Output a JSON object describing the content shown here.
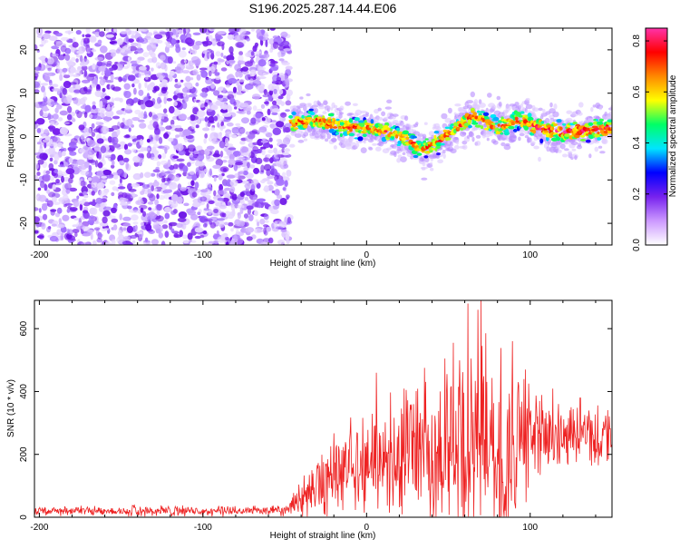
{
  "title": "S196.2025.287.14.44.E06",
  "chart_data": [
    {
      "type": "heatmap",
      "xlabel": "Height of straight line (km)",
      "ylabel": "Frequency (Hz)",
      "xlim": [
        -203,
        150
      ],
      "ylim": [
        -25,
        25
      ],
      "xticks": [
        -200,
        -100,
        0,
        100
      ],
      "yticks": [
        -20,
        -10,
        0,
        10,
        20
      ],
      "signal_onset_km": -47,
      "center_frequency_track": [
        {
          "x": -45,
          "y": 3
        },
        {
          "x": -30,
          "y": 4
        },
        {
          "x": -15,
          "y": 2
        },
        {
          "x": 0,
          "y": 2
        },
        {
          "x": 15,
          "y": 1
        },
        {
          "x": 25,
          "y": -1
        },
        {
          "x": 35,
          "y": -3
        },
        {
          "x": 45,
          "y": -1
        },
        {
          "x": 55,
          "y": 2
        },
        {
          "x": 65,
          "y": 5
        },
        {
          "x": 80,
          "y": 2
        },
        {
          "x": 95,
          "y": 4
        },
        {
          "x": 105,
          "y": 2
        },
        {
          "x": 120,
          "y": 1
        },
        {
          "x": 150,
          "y": 2
        }
      ],
      "colorbar": {
        "label": "Normalized spectral amplitude",
        "range": [
          0.0,
          0.85
        ],
        "ticks": [
          "0.0",
          "0.2",
          "0.4",
          "0.6",
          "0.8"
        ],
        "colors": [
          "#ffffff",
          "#cc99ff",
          "#7722ee",
          "#0000ff",
          "#00e5ff",
          "#00ff66",
          "#ffff00",
          "#ff8800",
          "#ff0000",
          "#ff33aa"
        ]
      }
    },
    {
      "type": "line",
      "xlabel": "Height of straight line (km)",
      "ylabel": "SNR (10 * v/v)",
      "xlim": [
        -203,
        150
      ],
      "ylim": [
        0,
        690
      ],
      "xticks": [
        -200,
        -100,
        0,
        100
      ],
      "yticks": [
        0,
        200,
        400,
        600
      ],
      "series": [
        {
          "name": "SNR",
          "color": "#ee2222",
          "envelope": [
            {
              "x": -203,
              "mean": 20,
              "spread": 18
            },
            {
              "x": -50,
              "mean": 20,
              "spread": 18
            },
            {
              "x": -35,
              "mean": 80,
              "spread": 100
            },
            {
              "x": -20,
              "mean": 150,
              "spread": 140
            },
            {
              "x": 0,
              "mean": 190,
              "spread": 180
            },
            {
              "x": 20,
              "mean": 220,
              "spread": 220
            },
            {
              "x": 40,
              "mean": 240,
              "spread": 260
            },
            {
              "x": 55,
              "mean": 260,
              "spread": 320
            },
            {
              "x": 70,
              "mean": 260,
              "spread": 340
            },
            {
              "x": 85,
              "mean": 250,
              "spread": 280
            },
            {
              "x": 100,
              "mean": 260,
              "spread": 200
            },
            {
              "x": 120,
              "mean": 270,
              "spread": 120
            },
            {
              "x": 150,
              "mean": 270,
              "spread": 100
            }
          ],
          "peaks": [
            {
              "x": 62,
              "y": 680
            },
            {
              "x": 68,
              "y": 660
            },
            {
              "x": 70,
              "y": 690
            },
            {
              "x": 53,
              "y": 555
            },
            {
              "x": 48,
              "y": 505
            },
            {
              "x": 89,
              "y": 560
            },
            {
              "x": 6,
              "y": 460
            },
            {
              "x": 97,
              "y": 470
            }
          ]
        }
      ]
    }
  ]
}
